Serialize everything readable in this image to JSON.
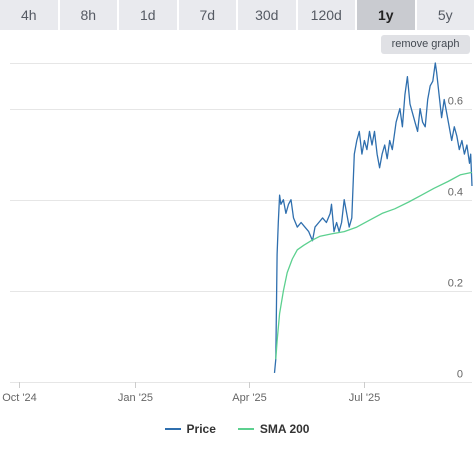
{
  "tabs": [
    {
      "label": "4h",
      "active": false
    },
    {
      "label": "8h",
      "active": false
    },
    {
      "label": "1d",
      "active": false
    },
    {
      "label": "7d",
      "active": false
    },
    {
      "label": "30d",
      "active": false
    },
    {
      "label": "120d",
      "active": false
    },
    {
      "label": "1y",
      "active": true
    },
    {
      "label": "5y",
      "active": false
    }
  ],
  "remove_graph_label": "remove graph",
  "colors": {
    "price": "#2f6fae",
    "sma": "#5cd08f",
    "grid": "#e6e6e6",
    "axis_text": "#666666",
    "active_tab": "#c9cbd0",
    "tab_bg": "#e9eaee"
  },
  "chart_data": {
    "type": "line",
    "title": "",
    "xlabel": "",
    "ylabel": "",
    "x_range": [
      "2024-09-24",
      "2025-09-24"
    ],
    "ylim": [
      0,
      0.7
    ],
    "grid": true,
    "legend_position": "bottom",
    "x_ticks": [
      {
        "date": "2024-10-01",
        "label": "Oct '24"
      },
      {
        "date": "2025-01-01",
        "label": "Jan '25"
      },
      {
        "date": "2025-04-01",
        "label": "Apr '25"
      },
      {
        "date": "2025-07-01",
        "label": "Jul '25"
      }
    ],
    "y_ticks": [
      {
        "value": 0,
        "label": "0"
      },
      {
        "value": 0.2,
        "label": "0.2"
      },
      {
        "value": 0.4,
        "label": "0.4"
      },
      {
        "value": 0.6,
        "label": "0.6"
      }
    ],
    "series": [
      {
        "name": "Price",
        "color": "#2f6fae",
        "points": [
          [
            "2025-04-21",
            0.02
          ],
          [
            "2025-04-22",
            0.05
          ],
          [
            "2025-04-23",
            0.28
          ],
          [
            "2025-04-24",
            0.35
          ],
          [
            "2025-04-25",
            0.41
          ],
          [
            "2025-04-26",
            0.39
          ],
          [
            "2025-04-28",
            0.4
          ],
          [
            "2025-04-30",
            0.37
          ],
          [
            "2025-05-02",
            0.39
          ],
          [
            "2025-05-04",
            0.4
          ],
          [
            "2025-05-06",
            0.36
          ],
          [
            "2025-05-09",
            0.34
          ],
          [
            "2025-05-12",
            0.35
          ],
          [
            "2025-05-15",
            0.34
          ],
          [
            "2025-05-18",
            0.33
          ],
          [
            "2025-05-21",
            0.31
          ],
          [
            "2025-05-23",
            0.34
          ],
          [
            "2025-05-26",
            0.35
          ],
          [
            "2025-05-29",
            0.36
          ],
          [
            "2025-06-01",
            0.35
          ],
          [
            "2025-06-04",
            0.37
          ],
          [
            "2025-06-05",
            0.39
          ],
          [
            "2025-06-07",
            0.33
          ],
          [
            "2025-06-09",
            0.35
          ],
          [
            "2025-06-11",
            0.33
          ],
          [
            "2025-06-13",
            0.35
          ],
          [
            "2025-06-15",
            0.4
          ],
          [
            "2025-06-17",
            0.37
          ],
          [
            "2025-06-19",
            0.34
          ],
          [
            "2025-06-21",
            0.36
          ],
          [
            "2025-06-23",
            0.5
          ],
          [
            "2025-06-25",
            0.53
          ],
          [
            "2025-06-27",
            0.55
          ],
          [
            "2025-06-29",
            0.5
          ],
          [
            "2025-07-01",
            0.53
          ],
          [
            "2025-07-03",
            0.51
          ],
          [
            "2025-07-05",
            0.55
          ],
          [
            "2025-07-07",
            0.52
          ],
          [
            "2025-07-09",
            0.55
          ],
          [
            "2025-07-11",
            0.5
          ],
          [
            "2025-07-13",
            0.47
          ],
          [
            "2025-07-15",
            0.5
          ],
          [
            "2025-07-17",
            0.52
          ],
          [
            "2025-07-19",
            0.49
          ],
          [
            "2025-07-21",
            0.53
          ],
          [
            "2025-07-23",
            0.51
          ],
          [
            "2025-07-26",
            0.57
          ],
          [
            "2025-07-29",
            0.6
          ],
          [
            "2025-07-31",
            0.56
          ],
          [
            "2025-08-02",
            0.63
          ],
          [
            "2025-08-04",
            0.67
          ],
          [
            "2025-08-06",
            0.61
          ],
          [
            "2025-08-08",
            0.59
          ],
          [
            "2025-08-10",
            0.57
          ],
          [
            "2025-08-12",
            0.55
          ],
          [
            "2025-08-14",
            0.6
          ],
          [
            "2025-08-16",
            0.57
          ],
          [
            "2025-08-18",
            0.56
          ],
          [
            "2025-08-20",
            0.62
          ],
          [
            "2025-08-22",
            0.65
          ],
          [
            "2025-08-24",
            0.66
          ],
          [
            "2025-08-26",
            0.7
          ],
          [
            "2025-08-27",
            0.68
          ],
          [
            "2025-08-29",
            0.63
          ],
          [
            "2025-08-31",
            0.58
          ],
          [
            "2025-09-02",
            0.62
          ],
          [
            "2025-09-04",
            0.59
          ],
          [
            "2025-09-06",
            0.56
          ],
          [
            "2025-09-08",
            0.53
          ],
          [
            "2025-09-10",
            0.56
          ],
          [
            "2025-09-12",
            0.54
          ],
          [
            "2025-09-14",
            0.51
          ],
          [
            "2025-09-16",
            0.53
          ],
          [
            "2025-09-18",
            0.5
          ],
          [
            "2025-09-20",
            0.52
          ],
          [
            "2025-09-22",
            0.48
          ],
          [
            "2025-09-23",
            0.5
          ],
          [
            "2025-09-24",
            0.43
          ]
        ]
      },
      {
        "name": "SMA 200",
        "color": "#5cd08f",
        "points": [
          [
            "2025-04-22",
            0.05
          ],
          [
            "2025-04-23",
            0.09
          ],
          [
            "2025-04-25",
            0.15
          ],
          [
            "2025-04-28",
            0.2
          ],
          [
            "2025-05-01",
            0.24
          ],
          [
            "2025-05-05",
            0.27
          ],
          [
            "2025-05-09",
            0.29
          ],
          [
            "2025-05-14",
            0.3
          ],
          [
            "2025-05-20",
            0.31
          ],
          [
            "2025-05-27",
            0.32
          ],
          [
            "2025-06-05",
            0.325
          ],
          [
            "2025-06-15",
            0.33
          ],
          [
            "2025-06-25",
            0.34
          ],
          [
            "2025-07-05",
            0.355
          ],
          [
            "2025-07-15",
            0.37
          ],
          [
            "2025-07-25",
            0.38
          ],
          [
            "2025-08-05",
            0.395
          ],
          [
            "2025-08-15",
            0.41
          ],
          [
            "2025-08-25",
            0.425
          ],
          [
            "2025-09-05",
            0.44
          ],
          [
            "2025-09-15",
            0.455
          ],
          [
            "2025-09-24",
            0.46
          ]
        ]
      }
    ]
  }
}
